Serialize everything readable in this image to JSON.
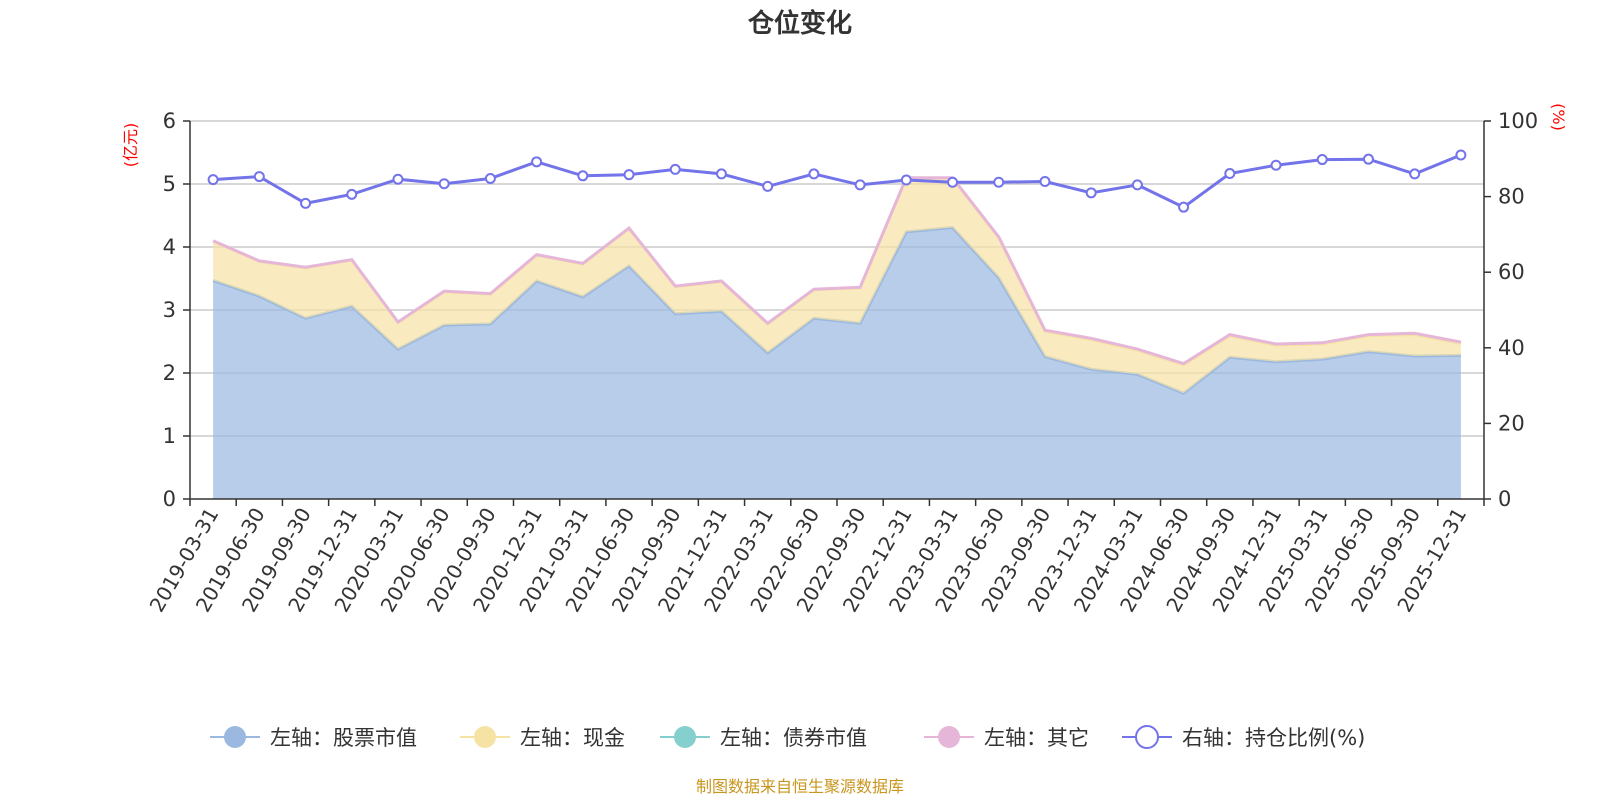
{
  "chart_data": {
    "type": "area",
    "title": "仓位变化",
    "left_axis_label": "(亿元)",
    "right_axis_label": "(%)",
    "left_ylim": [
      0,
      6
    ],
    "left_ticks": [
      0,
      1,
      2,
      3,
      4,
      5,
      6
    ],
    "right_ylim": [
      0,
      100
    ],
    "right_ticks": [
      0,
      20,
      40,
      60,
      80,
      100
    ],
    "categories": [
      "2019-03-31",
      "2019-06-30",
      "2019-09-30",
      "2019-12-31",
      "2020-03-31",
      "2020-06-30",
      "2020-09-30",
      "2020-12-31",
      "2021-03-31",
      "2021-06-30",
      "2021-09-30",
      "2021-12-31",
      "2022-03-31",
      "2022-06-30",
      "2022-09-30",
      "2022-12-31",
      "2023-03-31",
      "2023-06-30",
      "2023-09-30",
      "2023-12-31",
      "2024-03-31",
      "2024-06-30",
      "2024-09-30",
      "2024-12-31",
      "2025-03-31",
      "2025-06-30",
      "2025-09-30",
      "2025-12-31"
    ],
    "series": [
      {
        "name": "左轴：股票市值",
        "axis": "left",
        "color": "#9ab8e0",
        "values": [
          3.47,
          3.22,
          2.87,
          3.06,
          2.38,
          2.76,
          2.78,
          3.46,
          3.21,
          3.7,
          2.94,
          2.98,
          2.32,
          2.87,
          2.79,
          4.24,
          4.31,
          3.51,
          2.26,
          2.06,
          1.98,
          1.68,
          2.25,
          2.18,
          2.22,
          2.34,
          2.27,
          2.28
        ]
      },
      {
        "name": "左轴：现金",
        "axis": "left",
        "color": "#f6e3a4",
        "values": [
          0.62,
          0.55,
          0.8,
          0.73,
          0.42,
          0.53,
          0.47,
          0.41,
          0.52,
          0.59,
          0.43,
          0.47,
          0.46,
          0.45,
          0.56,
          0.85,
          0.78,
          0.64,
          0.4,
          0.47,
          0.38,
          0.45,
          0.34,
          0.26,
          0.24,
          0.25,
          0.34,
          0.19
        ]
      },
      {
        "name": "左轴：债券市值",
        "axis": "left",
        "color": "#86cfcf",
        "values": [
          0,
          0,
          0,
          0,
          0,
          0,
          0,
          0,
          0,
          0,
          0,
          0,
          0,
          0,
          0,
          0,
          0,
          0,
          0,
          0,
          0,
          0,
          0,
          0,
          0,
          0,
          0,
          0
        ]
      },
      {
        "name": "左轴：其它",
        "axis": "left",
        "color": "#e6b6d8",
        "values": [
          0.01,
          0.01,
          0.01,
          0.01,
          0.01,
          0.01,
          0.01,
          0.01,
          0.01,
          0.01,
          0.01,
          0.01,
          0.01,
          0.01,
          0.01,
          0.01,
          0.01,
          0.01,
          0.02,
          0.02,
          0.02,
          0.02,
          0.02,
          0.02,
          0.02,
          0.02,
          0.02,
          0.02
        ]
      },
      {
        "name": "右轴：持仓比例(%)",
        "axis": "right",
        "color": "#7373ea",
        "values": [
          84.5,
          85.3,
          78.2,
          80.6,
          84.6,
          83.4,
          84.8,
          89.2,
          85.5,
          85.8,
          87.2,
          86.0,
          82.7,
          86.0,
          83.1,
          84.4,
          83.8,
          83.8,
          84.0,
          81.0,
          83.1,
          77.2,
          86.1,
          88.3,
          89.8,
          89.9,
          86.0,
          91.0
        ]
      }
    ],
    "legend_position": "bottom",
    "grid": true
  },
  "source_note": "制图数据来自恒生聚源数据库"
}
